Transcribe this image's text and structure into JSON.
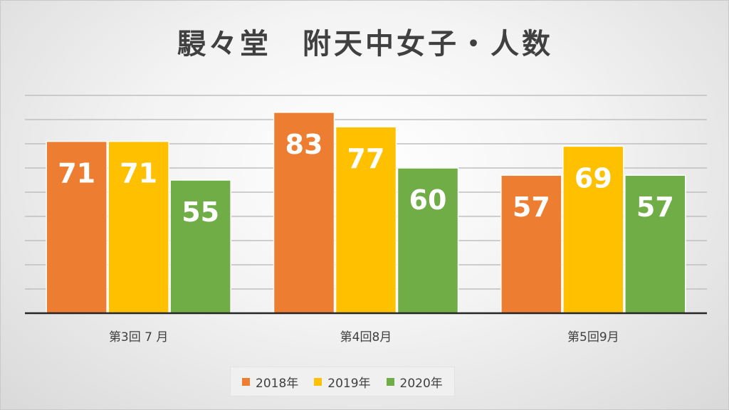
{
  "chart_data": {
    "type": "bar",
    "title": "駸々堂　附天中女子・人数",
    "categories": [
      "第3回 7 月",
      "第4回8月",
      "第5回9月"
    ],
    "series": [
      {
        "name": "2018年",
        "values": [
          71,
          83,
          57
        ],
        "color": "#ED7D31"
      },
      {
        "name": "2019年",
        "values": [
          71,
          77,
          69
        ],
        "color": "#FFC000"
      },
      {
        "name": "2020年",
        "values": [
          55,
          60,
          57
        ],
        "color": "#70AD47"
      }
    ],
    "ylim": [
      0,
      90
    ],
    "grid": true,
    "legend": "bottom",
    "data_labels": true,
    "xlabel": "",
    "ylabel": ""
  }
}
